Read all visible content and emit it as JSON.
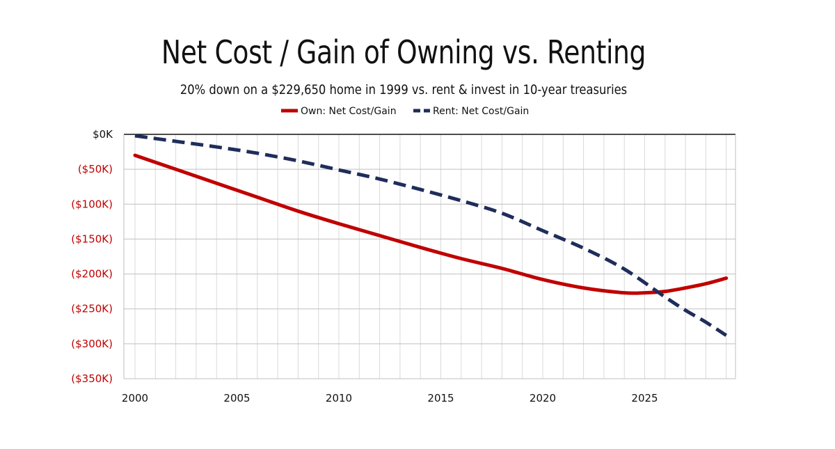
{
  "chart_data": {
    "type": "line",
    "title": "Net Cost / Gain of Owning vs. Renting",
    "subtitle": "20% down on a $229,650 home in 1999 vs. rent & invest in 10-year treasuries",
    "xlabel": "",
    "ylabel": "",
    "xlim": [
      2000,
      2030
    ],
    "ylim": [
      -350000,
      0
    ],
    "x_ticks": [
      2000,
      2005,
      2010,
      2015,
      2020,
      2025
    ],
    "x_tick_labels": [
      "2000",
      "2005",
      "2010",
      "2015",
      "2020",
      "2025"
    ],
    "y_ticks": [
      0,
      -50000,
      -100000,
      -150000,
      -200000,
      -250000,
      -300000,
      -350000
    ],
    "y_tick_labels": [
      "$0K",
      "($50K)",
      "($100K)",
      "($150K)",
      "($200K)",
      "($250K)",
      "($300K)",
      "($350K)"
    ],
    "grid": true,
    "legend_position": "top-center",
    "series": [
      {
        "name": "Own: Net Cost/Gain",
        "color": "#c00000",
        "style": "solid",
        "x": [
          2000,
          2002,
          2004,
          2006,
          2008,
          2010,
          2012,
          2014,
          2016,
          2018,
          2020,
          2022,
          2024,
          2025,
          2026,
          2027,
          2028,
          2029
        ],
        "values": [
          -30000,
          -50000,
          -70000,
          -90000,
          -110000,
          -128000,
          -145000,
          -162000,
          -178000,
          -192000,
          -208000,
          -220000,
          -227000,
          -227000,
          -225000,
          -220000,
          -214000,
          -206000
        ]
      },
      {
        "name": "Rent: Net Cost/Gain",
        "color": "#1f2d5a",
        "style": "dashed",
        "x": [
          2000,
          2002,
          2004,
          2006,
          2008,
          2010,
          2012,
          2014,
          2016,
          2018,
          2020,
          2022,
          2024,
          2026,
          2027,
          2028,
          2029
        ],
        "values": [
          -2000,
          -10000,
          -18000,
          -27000,
          -38000,
          -51000,
          -64000,
          -79000,
          -95000,
          -113000,
          -138000,
          -163000,
          -193000,
          -233000,
          -252000,
          -269000,
          -288000
        ]
      }
    ]
  }
}
